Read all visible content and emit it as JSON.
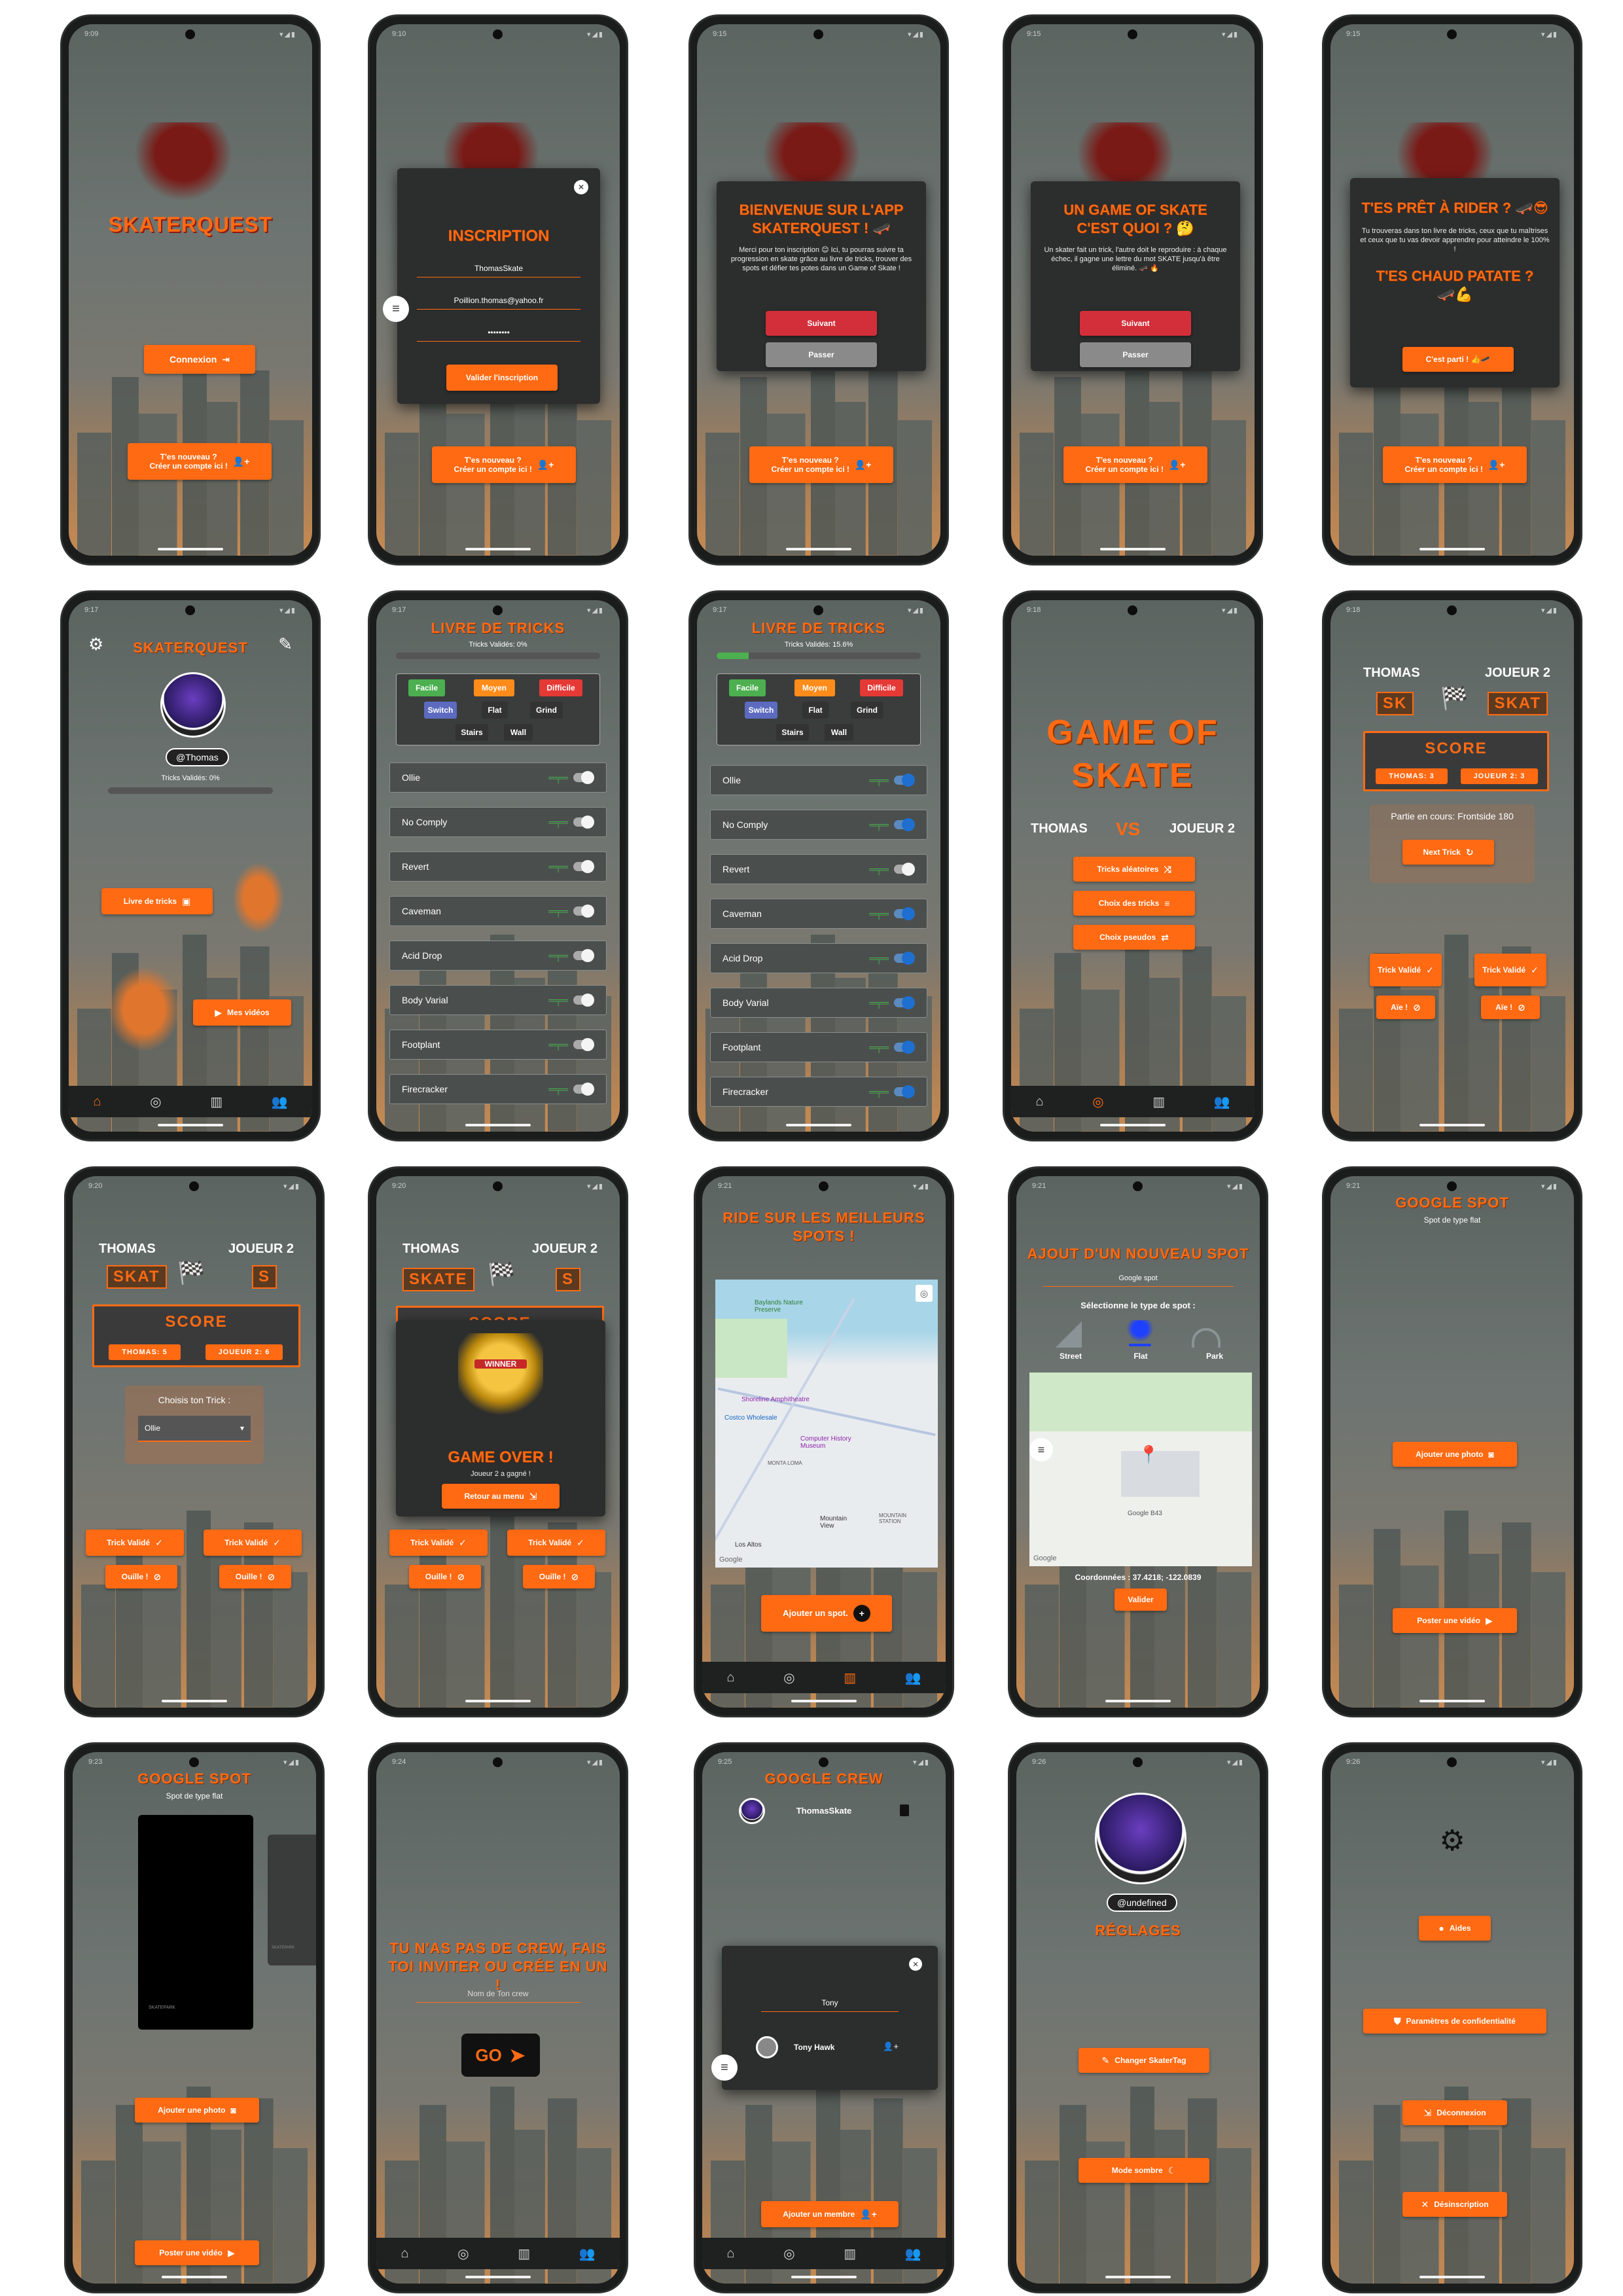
{
  "status_times": [
    "9:09",
    "9:10",
    "9:15",
    "9:15",
    "9:15",
    "9:17",
    "9:17",
    "9:17",
    "9:18",
    "9:18",
    "9:20",
    "9:20",
    "9:21",
    "9:21",
    "9:21",
    "9:23",
    "9:24",
    "9:25",
    "9:26",
    "9:26"
  ],
  "status_icons": "▾◢▮",
  "colors": {
    "accent": "#ff6a13",
    "dark": "#2c2d2d"
  },
  "icons": {
    "login": "⇥",
    "add_user": "👤+",
    "close": "✕",
    "menu": "≡",
    "gear": "⚙",
    "pencil": "✎",
    "book": "▣",
    "video": "▶",
    "check": "✓",
    "cancel": "⊘",
    "restart": "↻",
    "shuffle": "⤨",
    "list": "≡",
    "swap": "⇄",
    "send": "➤",
    "camera": "◙",
    "plus": "+",
    "home": "⌂",
    "target": "◎",
    "map": "▥",
    "group": "👥",
    "help": "●",
    "shield": "⛊",
    "logout": "⇲",
    "unsubscribe": "✕",
    "moon": "☾",
    "flag": "🏁",
    "pin": "📍"
  },
  "s1": {
    "logo": "SKATERQUEST",
    "login": "Connexion",
    "new_line1": "T'es nouveau ?",
    "new_line2": "Créer un compte ici !"
  },
  "s2": {
    "title": "INSCRIPTION",
    "username": "ThomasSkate",
    "email": "Poillion.thomas@yahoo.fr",
    "password": "••••••••",
    "submit": "Valider l'inscription"
  },
  "s3": {
    "title": "BIENVENUE SUR L'APP SKATERQUEST ! 🛹",
    "text": "Merci pour ton inscription 😊 Ici, tu pourras suivre ta progression en skate grâce au livre de tricks, trouver des spots et défier tes potes dans un Game of Skate !",
    "next": "Suivant",
    "skip": "Passer"
  },
  "s4": {
    "title": "UN GAME OF SKATE C'EST QUOI ? 🤔",
    "text": "Un skater fait un trick, l'autre doit le reproduire : à chaque échec, il gagne une lettre du mot SKATE jusqu'à être éliminé. 🛹 🔥",
    "next": "Suivant",
    "skip": "Passer"
  },
  "s5": {
    "title": "T'ES PRÊT À RIDER ? 🛹😎",
    "text": "Tu trouveras dans ton livre de tricks, ceux que tu maîtrises et ceux que tu vas devoir apprendre pour atteindre le 100% !",
    "title2": "T'ES CHAUD PATATE ? 🛹💪",
    "go": "C'est parti ! 👍🛹"
  },
  "s6": {
    "title": "SKATERQUEST",
    "pseudo": "@Thomas",
    "progress": "Tricks Validés: 0%",
    "book": "Livre de tricks",
    "videos": "Mes vidéos"
  },
  "tricks": {
    "title": "LIVRE DE TRICKS",
    "progress_a": "Tricks Validés: 0%",
    "progress_b": "Tricks Validés: 15.6%",
    "filters": [
      "Facile",
      "Moyen",
      "Difficile",
      "Switch",
      "Flat",
      "Grind",
      "Stairs",
      "Wall"
    ],
    "items": [
      "Ollie",
      "No Comply",
      "Revert",
      "Caveman",
      "Acid Drop",
      "Body Varial",
      "Footplant",
      "Firecracker"
    ]
  },
  "s9": {
    "title1": "GAME OF",
    "title2": "SKATE",
    "p1": "THOMAS",
    "vs": "VS",
    "p2": "JOUEUR 2",
    "b1": "Tricks aléatoires",
    "b2": "Choix des tricks",
    "b3": "Choix pseudos"
  },
  "s10": {
    "p1": "THOMAS",
    "p2": "JOUEUR 2",
    "l1": "SK",
    "l2": "SKAT",
    "score": "SCORE",
    "s1": "THOMAS: 3",
    "s2": "JOUEUR 2: 3",
    "current": "Partie en cours: Frontside 180",
    "next": "Next Trick",
    "valid": "Trick Validé",
    "fail": "Aïe !"
  },
  "s11": {
    "p1": "THOMAS",
    "p2": "JOUEUR 2",
    "l1": "SKAT",
    "l2": "S",
    "score": "SCORE",
    "s1": "THOMAS: 5",
    "s2": "JOUEUR 2: 6",
    "choose": "Choisis ton Trick :",
    "select": "Ollie",
    "valid": "Trick Validé",
    "fail": "Ouille !"
  },
  "s12": {
    "p1": "THOMAS",
    "p2": "JOUEUR 2",
    "l1": "SKATE",
    "l2": "S",
    "score": "SCORE",
    "over": "GAME OVER !",
    "winner": "Joueur 2 a gagné !",
    "back": "Retour au menu",
    "badge": "WINNER",
    "valid": "Trick Validé",
    "fail": "Ouille !"
  },
  "s13": {
    "title": "RIDE SUR LES MEILLEURS SPOTS !",
    "add": "Ajouter un spot.",
    "places": [
      "Baylands Nature Preserve",
      "Shoreline Amphitheatre",
      "Costco Wholesale",
      "Computer History Museum",
      "MONTA LOMA",
      "Mountain View",
      "Los Altos",
      "MOUNTAIN STATION"
    ],
    "google": "Google"
  },
  "s14": {
    "title": "AJOUT D'UN NOUVEAU SPOT",
    "name": "Google spot",
    "select": "Sélectionne le type de spot :",
    "types": [
      "Street",
      "Flat",
      "Park"
    ],
    "coords": "Coordonnées : 37.4218; -122.0839",
    "validate": "Valider",
    "building": "Google B43",
    "google": "Google"
  },
  "s15": {
    "title": "GOOGLE SPOT",
    "type": "Spot de type flat",
    "photo": "Ajouter une photo",
    "video": "Poster une vidéo"
  },
  "s16": {
    "title": "GOOGLE SPOT",
    "type": "Spot de type flat",
    "photo": "Ajouter une photo",
    "video": "Poster une vidéo",
    "caption1": "SKATEPARK",
    "caption2": "SKATEPARK"
  },
  "s17": {
    "title": "TU N'AS PAS DE CREW, FAIS TOI INVITER OU CRÉE EN UN !",
    "placeholder": "Nom de Ton crew",
    "go": "GO"
  },
  "s18": {
    "title": "GOOGLE CREW",
    "member": "ThomasSkate",
    "search": "Tony",
    "result": "Tony Hawk",
    "add": "Ajouter un membre"
  },
  "s19": {
    "pseudo": "@undefined",
    "title": "RÉGLAGES",
    "change": "Changer SkaterTag",
    "dark": "Mode sombre"
  },
  "s20": {
    "help": "Aides",
    "privacy": "Paramètres de confidentialité",
    "logout": "Déconnexion",
    "unsubscribe": "Désinscription"
  }
}
